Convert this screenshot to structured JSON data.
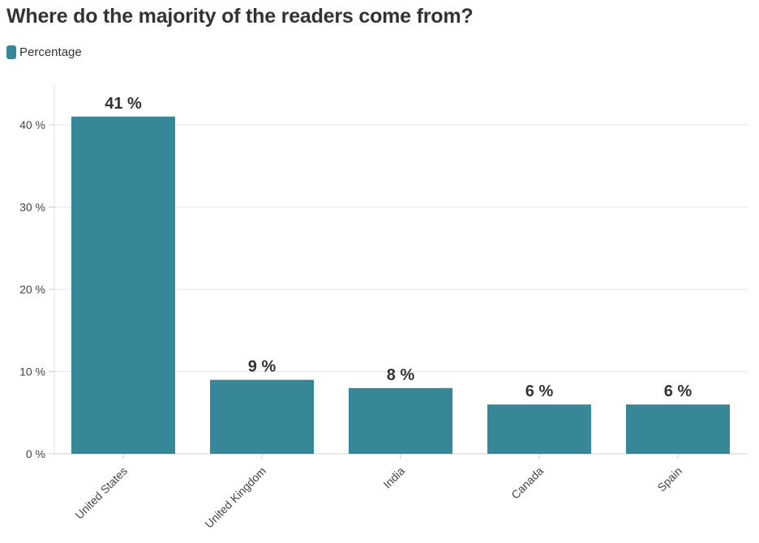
{
  "chart_data": {
    "type": "bar",
    "title": "Where do the majority of the readers come from?",
    "legend": {
      "position": "top-left",
      "entries": [
        "Percentage"
      ]
    },
    "categories": [
      "United States",
      "United Kingdom",
      "India",
      "Canada",
      "Spain"
    ],
    "series": [
      {
        "name": "Percentage",
        "values": [
          41,
          9,
          8,
          6,
          6
        ],
        "color": "#368899"
      }
    ],
    "data_labels": [
      "41 %",
      "9 %",
      "8 %",
      "6 %",
      "6 %"
    ],
    "yticks": [
      0,
      10,
      20,
      30,
      40
    ],
    "ytick_labels": [
      "0 %",
      "10 %",
      "20 %",
      "30 %",
      "40 %"
    ],
    "ylim": [
      0,
      45
    ],
    "grid": true,
    "xlabel": "",
    "ylabel": ""
  }
}
